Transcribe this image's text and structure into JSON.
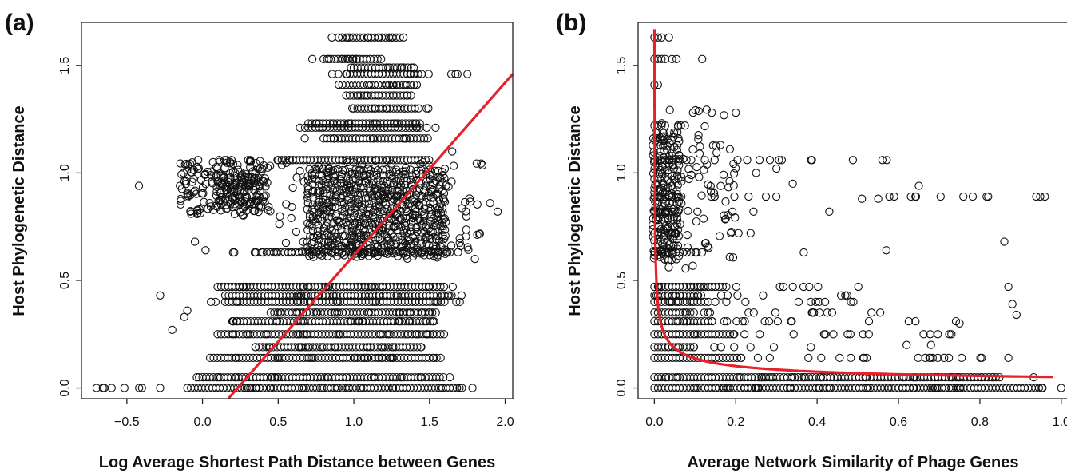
{
  "chart_data": [
    {
      "panel": "(a)",
      "type": "scatter",
      "xlabel": "Log Average Shortest Path Distance between Genes",
      "ylabel": "Host Phylogenetic Distance",
      "xlim": [
        -0.8,
        2.05
      ],
      "ylim": [
        -0.05,
        1.7
      ],
      "xticks": [
        -0.5,
        0.0,
        0.5,
        1.0,
        1.5,
        2.0
      ],
      "xtick_labels": [
        "−0.5",
        "0.0",
        "0.5",
        "1.0",
        "1.5",
        "2.0"
      ],
      "yticks": [
        0.0,
        0.5,
        1.0,
        1.5
      ],
      "ytick_labels": [
        "0.0",
        "0.5",
        "1.0",
        "1.5"
      ],
      "fit_color": "#e8202a",
      "fit_line": {
        "type": "linear",
        "x": [
          0.17,
          2.05
        ],
        "y": [
          -0.05,
          1.46
        ]
      },
      "bands": [
        {
          "y": 0.0,
          "x": [
            -0.7,
            1.8
          ],
          "dense": [
            -0.1,
            1.7
          ]
        },
        {
          "y": 0.05,
          "x": [
            -0.05,
            1.7
          ],
          "dense": [
            0.0,
            1.6
          ]
        },
        {
          "y": 0.14,
          "x": [
            -0.05,
            1.65
          ],
          "dense": [
            0.05,
            1.55
          ]
        },
        {
          "y": 0.19,
          "x": [
            0.15,
            1.55
          ],
          "dense": [
            0.35,
            1.45
          ]
        },
        {
          "y": 0.25,
          "x": [
            0.0,
            1.7
          ],
          "dense": [
            0.1,
            1.6
          ]
        },
        {
          "y": 0.31,
          "x": [
            0.05,
            1.65
          ],
          "dense": [
            0.2,
            1.55
          ]
        },
        {
          "y": 0.35,
          "x": [
            0.4,
            1.65
          ],
          "dense": [
            0.45,
            1.55
          ]
        },
        {
          "y": 0.4,
          "x": [
            0.05,
            1.7
          ],
          "dense": [
            0.15,
            1.6
          ]
        },
        {
          "y": 0.43,
          "x": [
            0.05,
            1.75
          ],
          "dense": [
            0.15,
            1.65
          ]
        },
        {
          "y": 0.47,
          "x": [
            0.05,
            1.75
          ],
          "dense": [
            0.1,
            1.6
          ]
        },
        {
          "y": 0.63,
          "x": [
            0.2,
            1.75
          ],
          "dense": [
            0.4,
            1.65
          ]
        },
        {
          "y": 1.06,
          "x": [
            -0.05,
            1.6
          ],
          "dense": [
            0.5,
            1.5
          ]
        },
        {
          "y": 1.16,
          "x": [
            0.6,
            1.6
          ],
          "dense": [
            0.8,
            1.5
          ]
        },
        {
          "y": 1.21,
          "x": [
            0.55,
            1.55
          ],
          "dense": [
            0.7,
            1.45
          ]
        },
        {
          "y": 1.23,
          "x": [
            0.55,
            1.55
          ],
          "dense": [
            0.7,
            1.45
          ]
        },
        {
          "y": 1.3,
          "x": [
            0.9,
            1.5
          ],
          "dense": [
            1.0,
            1.45
          ]
        },
        {
          "y": 1.36,
          "x": [
            0.85,
            1.45
          ],
          "dense": [
            0.95,
            1.4
          ]
        },
        {
          "y": 1.41,
          "x": [
            0.8,
            1.45
          ],
          "dense": [
            0.9,
            1.4
          ]
        },
        {
          "y": 1.46,
          "x": [
            0.85,
            1.8
          ],
          "dense": [
            0.95,
            1.45
          ]
        },
        {
          "y": 1.49,
          "x": [
            0.9,
            1.45
          ],
          "dense": [
            1.0,
            1.4
          ]
        },
        {
          "y": 1.53,
          "x": [
            0.6,
            1.3
          ],
          "dense": [
            0.8,
            1.2
          ]
        },
        {
          "y": 1.63,
          "x": [
            0.75,
            1.35
          ],
          "dense": [
            0.9,
            1.35
          ]
        }
      ],
      "clouds": [
        {
          "x": [
            0.5,
            1.85
          ],
          "y": [
            0.6,
            1.05
          ],
          "dense_x": [
            0.7,
            1.6
          ],
          "dense_y": [
            0.62,
            1.02
          ]
        },
        {
          "x": [
            -0.15,
            0.45
          ],
          "y": [
            0.8,
            1.06
          ],
          "dense_x": [
            0.1,
            0.4
          ],
          "dense_y": [
            0.85,
            1.0
          ]
        }
      ],
      "outliers": [
        {
          "x": -0.7,
          "y": 0.0
        },
        {
          "x": -0.4,
          "y": 0.0
        },
        {
          "x": -0.28,
          "y": 0.0
        },
        {
          "x": -0.42,
          "y": 0.94
        },
        {
          "x": -0.15,
          "y": 0.94
        },
        {
          "x": -0.08,
          "y": 0.82
        },
        {
          "x": -0.28,
          "y": 0.43
        },
        {
          "x": -0.2,
          "y": 0.27
        },
        {
          "x": -0.05,
          "y": 0.68
        },
        {
          "x": -0.1,
          "y": 0.36
        },
        {
          "x": -0.12,
          "y": 0.33
        },
        {
          "x": 0.02,
          "y": 0.64
        },
        {
          "x": 1.8,
          "y": 0.6
        },
        {
          "x": 1.95,
          "y": 0.82
        },
        {
          "x": 1.9,
          "y": 0.86
        },
        {
          "x": 1.75,
          "y": 1.46
        },
        {
          "x": 1.65,
          "y": 1.1
        }
      ]
    },
    {
      "panel": "(b)",
      "type": "scatter",
      "xlabel": "Average Network Similarity of Phage Genes",
      "ylabel": "Host Phylogenetic Distance",
      "xlim": [
        -0.04,
        1.02
      ],
      "ylim": [
        -0.05,
        1.7
      ],
      "xticks": [
        0.0,
        0.2,
        0.4,
        0.6,
        0.8,
        1.0
      ],
      "xtick_labels": [
        "0.0",
        "0.2",
        "0.4",
        "0.6",
        "0.8",
        "1.0"
      ],
      "yticks": [
        0.0,
        0.5,
        1.0,
        1.5
      ],
      "ytick_labels": [
        "0.0",
        "0.5",
        "1.0",
        "1.5"
      ],
      "fit_color": "#e8202a",
      "fit_line": {
        "type": "power",
        "a": 0.051,
        "b": -0.43,
        "x_range": [
          0.0003,
          0.98
        ],
        "y_cap": 1.7
      },
      "bands": [
        {
          "y": 0.0,
          "x": [
            0.0,
            0.96
          ],
          "dense": [
            0.0,
            0.96
          ]
        },
        {
          "y": 0.05,
          "x": [
            0.0,
            0.98
          ],
          "dense": [
            0.0,
            0.85
          ]
        },
        {
          "y": 0.14,
          "x": [
            0.0,
            0.9
          ],
          "dense": [
            0.0,
            0.22
          ]
        },
        {
          "y": 0.19,
          "x": [
            0.0,
            0.42
          ],
          "dense": [
            0.0,
            0.1
          ]
        },
        {
          "y": 0.25,
          "x": [
            0.0,
            0.73
          ],
          "dense": [
            0.0,
            0.2
          ]
        },
        {
          "y": 0.31,
          "x": [
            0.0,
            0.75
          ],
          "dense": [
            0.0,
            0.15
          ]
        },
        {
          "y": 0.35,
          "x": [
            0.0,
            0.6
          ],
          "dense": [
            0.0,
            0.1
          ]
        },
        {
          "y": 0.4,
          "x": [
            0.0,
            0.55
          ],
          "dense": [
            0.0,
            0.14
          ]
        },
        {
          "y": 0.43,
          "x": [
            0.0,
            0.5
          ],
          "dense": [
            0.0,
            0.12
          ]
        },
        {
          "y": 0.47,
          "x": [
            0.0,
            0.54
          ],
          "dense": [
            0.0,
            0.18
          ]
        },
        {
          "y": 0.63,
          "x": [
            0.0,
            0.41
          ],
          "dense": [
            0.0,
            0.08
          ]
        },
        {
          "y": 0.72,
          "x": [
            0.0,
            0.3
          ],
          "dense": [
            0.0,
            0.06
          ]
        },
        {
          "y": 0.82,
          "x": [
            0.0,
            0.25
          ],
          "dense": [
            0.0,
            0.05
          ]
        },
        {
          "y": 0.89,
          "x": [
            0.0,
            0.99
          ],
          "dense": [
            0.0,
            0.05
          ]
        },
        {
          "y": 1.06,
          "x": [
            0.0,
            0.68
          ],
          "dense": [
            0.0,
            0.04
          ]
        },
        {
          "y": 1.22,
          "x": [
            0.0,
            0.13
          ],
          "dense": [
            0.0,
            0.03
          ]
        },
        {
          "y": 1.41,
          "x": [
            0.0,
            0.02
          ],
          "dense": [
            0.0,
            0.01
          ]
        },
        {
          "y": 1.53,
          "x": [
            0.0,
            0.12
          ],
          "dense": [
            0.0,
            0.03
          ]
        },
        {
          "y": 1.63,
          "x": [
            0.0,
            0.04
          ],
          "dense": [
            0.0,
            0.02
          ]
        }
      ],
      "clouds": [
        {
          "x": [
            0.0,
            0.2
          ],
          "y": [
            0.55,
            1.3
          ],
          "dense_x": [
            0.0,
            0.06
          ],
          "dense_y": [
            0.6,
            1.2
          ]
        }
      ],
      "outliers": [
        {
          "x": 0.86,
          "y": 0.68
        },
        {
          "x": 0.87,
          "y": 0.47
        },
        {
          "x": 0.88,
          "y": 0.39
        },
        {
          "x": 0.89,
          "y": 0.34
        },
        {
          "x": 0.87,
          "y": 0.14
        },
        {
          "x": 0.65,
          "y": 0.94
        },
        {
          "x": 0.57,
          "y": 0.64
        },
        {
          "x": 0.55,
          "y": 0.88
        },
        {
          "x": 0.43,
          "y": 0.82
        },
        {
          "x": 0.25,
          "y": 1.0
        },
        {
          "x": 0.3,
          "y": 1.02
        },
        {
          "x": 0.34,
          "y": 0.95
        },
        {
          "x": 1.0,
          "y": 0.0
        },
        {
          "x": 0.75,
          "y": 0.3
        },
        {
          "x": 0.73,
          "y": 0.25
        },
        {
          "x": 0.68,
          "y": 0.2
        },
        {
          "x": 0.51,
          "y": 0.88
        },
        {
          "x": 0.62,
          "y": 0.2
        }
      ]
    }
  ]
}
